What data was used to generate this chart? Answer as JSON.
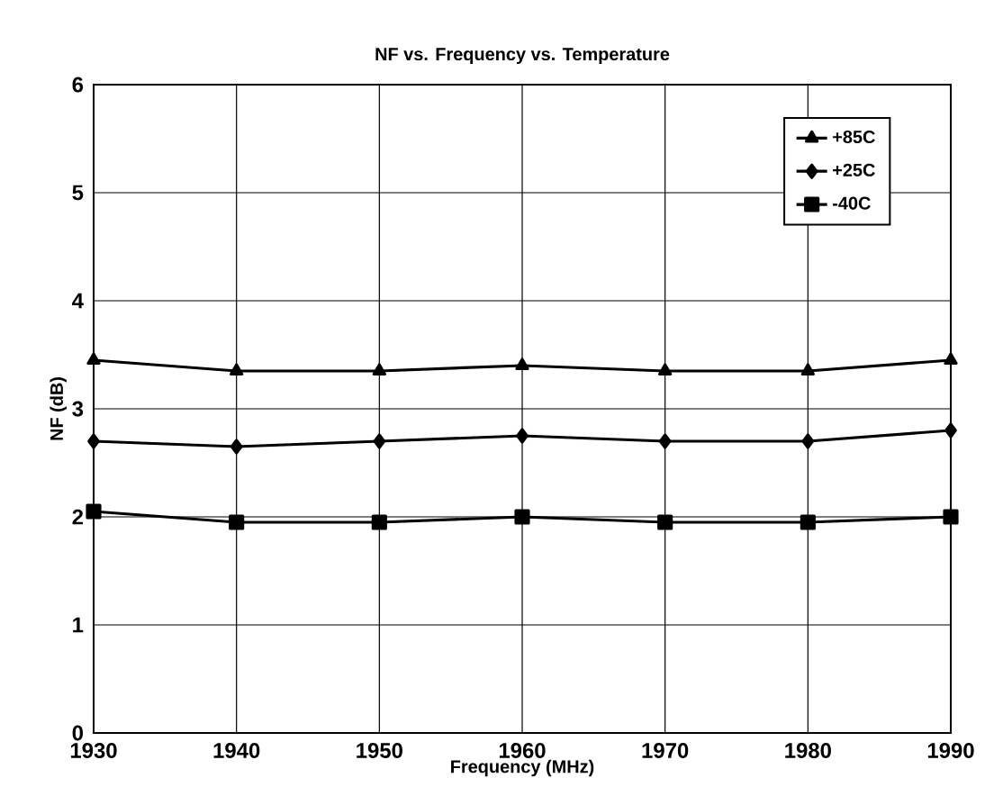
{
  "chart_data": {
    "type": "line",
    "title": "NF vs. Frequency vs. Temperature",
    "xlabel": "Frequency (MHz)",
    "ylabel": "NF (dB)",
    "x": [
      1930,
      1940,
      1950,
      1960,
      1970,
      1980,
      1990
    ],
    "series": [
      {
        "name": "+85C",
        "color": "#000000",
        "marker": "triangle",
        "values": [
          3.45,
          3.35,
          3.35,
          3.4,
          3.35,
          3.35,
          3.45
        ]
      },
      {
        "name": "+25C",
        "color": "#000000",
        "marker": "diamond",
        "values": [
          2.7,
          2.65,
          2.7,
          2.75,
          2.7,
          2.7,
          2.8
        ]
      },
      {
        "name": "-40C",
        "color": "#000000",
        "marker": "square",
        "values": [
          2.05,
          1.95,
          1.95,
          2.0,
          1.95,
          1.95,
          2.0
        ]
      }
    ],
    "xlim": [
      1930,
      1990
    ],
    "ylim": [
      0,
      6
    ],
    "xticks": [
      1930,
      1940,
      1950,
      1960,
      1970,
      1980,
      1990
    ],
    "yticks": [
      0,
      1,
      2,
      3,
      4,
      5,
      6
    ],
    "grid": true,
    "legend": "top right",
    "line_style": "solid"
  }
}
